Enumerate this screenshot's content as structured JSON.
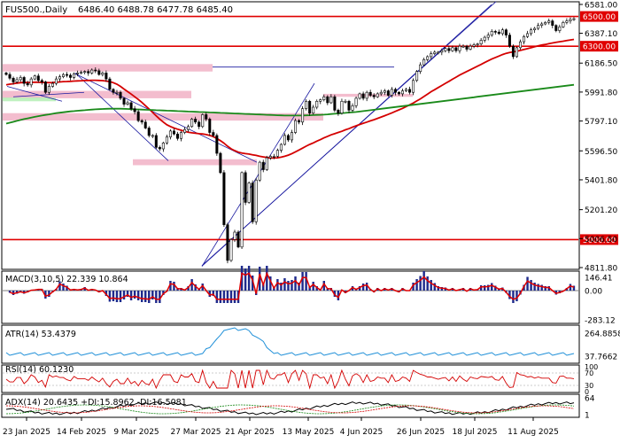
{
  "header": {
    "symbol": "FUS500.,Daily",
    "ohlc": "6486.40 6488.78 6477.78 6485.40"
  },
  "colors": {
    "bg": "#ffffff",
    "frame": "#000000",
    "red_level": "#e00000",
    "zone": "#f2b6c9",
    "zone_green": "#b8f0b8",
    "sma_red": "#d40000",
    "sma_green": "#1a8a1a",
    "trend_blue": "#1a1aa0",
    "candle": "#000000",
    "macd_hist": "#1e2a8c",
    "macd_signal": "#e00000",
    "atr": "#1e8fd8",
    "rsi": "#d40000",
    "adx": "#000000",
    "di_plus": "#1a8a1a",
    "di_minus": "#d40000"
  },
  "chart_data": [
    {
      "type": "candlestick",
      "title": "FUS500.,Daily",
      "y_ticks": [
        "6581.00",
        "6387.10",
        "6186.50",
        "5991.80",
        "5797.10",
        "5596.50",
        "5401.80",
        "5201.20",
        "5006.50",
        "4811.80"
      ],
      "ylim": [
        4770,
        6600
      ],
      "x_ticks": [
        "23 Jan 2025",
        "14 Feb 2025",
        "9 Mar 2025",
        "27 Mar 2025",
        "21 Apr 2025",
        "13 May 2025",
        "4 Jun 2025",
        "26 Jun 2025",
        "18 Jul 2025",
        "11 Aug 2025"
      ],
      "close": [
        6110,
        6085,
        6060,
        6075,
        6090,
        6050,
        6040,
        6080,
        6100,
        6070,
        6060,
        5990,
        6030,
        6050,
        6080,
        6095,
        6110,
        6105,
        6090,
        6115,
        6120,
        6125,
        6130,
        6120,
        6140,
        6135,
        6110,
        6120,
        6080,
        6010,
        5990,
        5990,
        5950,
        5910,
        5920,
        5880,
        5860,
        5800,
        5790,
        5750,
        5700,
        5700,
        5620,
        5610,
        5650,
        5690,
        5730,
        5710,
        5680,
        5720,
        5740,
        5760,
        5810,
        5790,
        5760,
        5840,
        5810,
        5720,
        5700,
        5580,
        5450,
        5100,
        4860,
        5000,
        5050,
        4950,
        5450,
        5250,
        5380,
        5120,
        5400,
        5520,
        5470,
        5550,
        5560,
        5560,
        5600,
        5640,
        5700,
        5670,
        5720,
        5800,
        5790,
        5880,
        5930,
        5850,
        5890,
        5930,
        5940,
        5960,
        5920,
        5960,
        5870,
        5850,
        5930,
        5930,
        5870,
        5900,
        5950,
        5980,
        5950,
        5990,
        5970,
        5960,
        5980,
        5990,
        6000,
        5970,
        6010,
        5990,
        5980,
        6000,
        6010,
        5990,
        6070,
        6130,
        6175,
        6210,
        6230,
        6250,
        6260,
        6260,
        6270,
        6285,
        6270,
        6290,
        6270,
        6300,
        6300,
        6280,
        6300,
        6310,
        6315,
        6340,
        6360,
        6375,
        6400,
        6395,
        6385,
        6410,
        6375,
        6300,
        6230,
        6290,
        6330,
        6365,
        6385,
        6410,
        6420,
        6440,
        6450,
        6460,
        6470,
        6440,
        6405,
        6430,
        6460,
        6470,
        6480,
        6485
      ],
      "series": [
        {
          "name": "",
          "kind": "sma",
          "values": [
            6040,
            6045,
            6048,
            6052,
            6055,
            6056,
            6056,
            6057,
            6058,
            6058,
            6057,
            6056,
            6055,
            6056,
            6058,
            6060,
            6062,
            6063,
            6064,
            6066,
            6067,
            6068,
            6070,
            6070,
            6071,
            6071,
            6070,
            6069,
            6066,
            6062,
            6055,
            6045,
            6030,
            6012,
            5995,
            5978,
            5960,
            5942,
            5922,
            5900,
            5878,
            5855,
            5832,
            5810,
            5790,
            5772,
            5760,
            5750,
            5742,
            5735,
            5728,
            5722,
            5718,
            5715,
            5712,
            5710,
            5706,
            5700,
            5692,
            5680,
            5665,
            5648,
            5628,
            5610,
            5598,
            5588,
            5582,
            5578,
            5575,
            5570,
            5566,
            5560,
            5556,
            5552,
            5548,
            5548,
            5550,
            5554,
            5560,
            5568,
            5578,
            5590,
            5602,
            5615,
            5628,
            5640,
            5650,
            5662,
            5672,
            5684,
            5694,
            5704,
            5712,
            5720,
            5728,
            5738,
            5746,
            5756,
            5765,
            5774,
            5782,
            5790,
            5798,
            5806,
            5815,
            5824,
            5833,
            5842,
            5852,
            5862,
            5872,
            5882,
            5894,
            5906,
            5918,
            5932,
            5946,
            5962,
            5978,
            5994,
            6008,
            6022,
            6036,
            6050,
            6064,
            6078,
            6092,
            6106,
            6118,
            6130,
            6142,
            6154,
            6166,
            6178,
            6190,
            6202,
            6214,
            6224,
            6234,
            6244,
            6252,
            6258,
            6262,
            6266,
            6272,
            6278,
            6284,
            6290,
            6296,
            6302,
            6308,
            6312,
            6318,
            6322,
            6326,
            6330,
            6334,
            6338,
            6342,
            6346
          ]
        },
        {
          "name": "",
          "kind": "sma",
          "values": [
            5780,
            5786,
            5792,
            5798,
            5804,
            5810,
            5815,
            5820,
            5825,
            5830,
            5834,
            5838,
            5842,
            5846,
            5850,
            5853,
            5856,
            5859,
            5862,
            5864,
            5866,
            5868,
            5870,
            5872,
            5874,
            5876,
            5877,
            5878,
            5879,
            5880,
            5880,
            5880,
            5880,
            5879,
            5878,
            5877,
            5876,
            5875,
            5874,
            5873,
            5872,
            5871,
            5870,
            5869,
            5868,
            5867,
            5866,
            5865,
            5864,
            5863,
            5862,
            5861,
            5860,
            5859,
            5858,
            5857,
            5856,
            5855,
            5854,
            5853,
            5852,
            5851,
            5850,
            5849,
            5848,
            5847,
            5846,
            5845,
            5844,
            5843,
            5842,
            5841,
            5840,
            5839,
            5838,
            5837,
            5836,
            5835,
            5834,
            5834,
            5834,
            5834,
            5834,
            5834,
            5835,
            5836,
            5837,
            5838,
            5839,
            5840,
            5842,
            5844,
            5846,
            5848,
            5850,
            5852,
            5854,
            5856,
            5858,
            5861,
            5864,
            5867,
            5870,
            5873,
            5876,
            5879,
            5882,
            5885,
            5888,
            5891,
            5894,
            5897,
            5900,
            5903,
            5906,
            5909,
            5912,
            5915,
            5918,
            5921,
            5924,
            5927,
            5930,
            5933,
            5936,
            5939,
            5942,
            5945,
            5948,
            5951,
            5954,
            5957,
            5960,
            5963,
            5966,
            5969,
            5972,
            5975,
            5978,
            5981,
            5984,
            5987,
            5990,
            5993,
            5996,
            5999,
            6002,
            6005,
            6008,
            6011,
            6014,
            6017,
            6020,
            6023,
            6026,
            6029,
            6032,
            6035,
            6038,
            6041
          ]
        }
      ],
      "levels": [
        {
          "label": "6500.00",
          "value": 6500
        },
        {
          "label": "6300.00",
          "value": 6300
        },
        {
          "label": "5000.00",
          "value": 5000
        }
      ]
    },
    {
      "type": "bar",
      "title": "MACD(3,10,5) 22.339 10.864",
      "y_ticks": [
        "146.41",
        "0.00",
        "-283.12"
      ]
    },
    {
      "type": "line",
      "title": "ATR(14) 53.4379",
      "y_ticks": [
        "264.8858",
        "37.7662"
      ]
    },
    {
      "type": "line",
      "title": "RSI(14) 60.1230",
      "y_ticks": [
        "100",
        "70",
        "30",
        "0"
      ]
    },
    {
      "type": "line",
      "title": "ADX(14) 20.6435 +DI:15.8962 -DI:16.5081",
      "y_ticks": [
        "64",
        "1"
      ]
    }
  ]
}
